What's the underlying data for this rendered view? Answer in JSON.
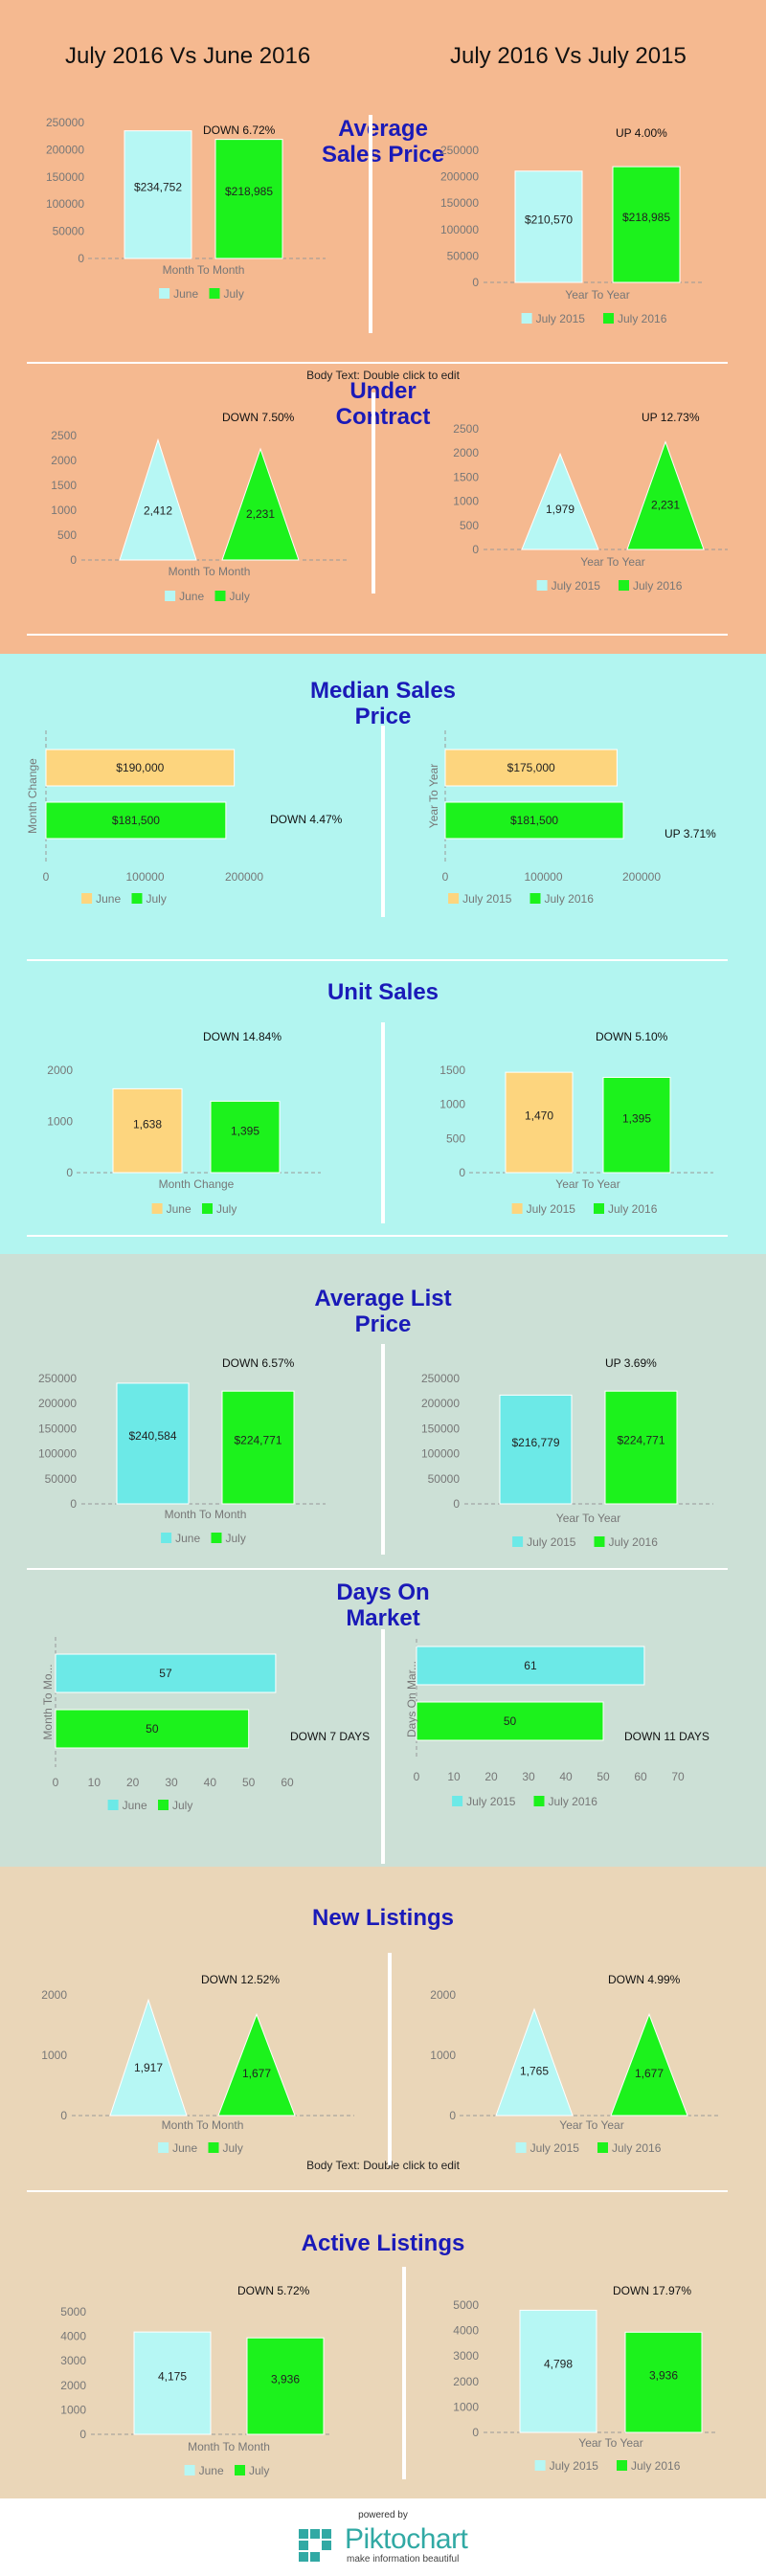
{
  "header": {
    "left": "July 2016 Vs June 2016",
    "right": "July 2016 Vs July 2015"
  },
  "sections": {
    "avg_sales": "Average\nSales Price",
    "under_contract": "Under\nContract",
    "median_sales": "Median Sales\nPrice",
    "unit_sales": "Unit Sales",
    "avg_list": "Average List\nPrice",
    "days_on_market": "Days On\nMarket",
    "new_listings": "New Listings",
    "active_listings": "Active Listings"
  },
  "notes": {
    "body_text_1": "Body Text: Double click to edit",
    "body_text_2": "Body Text: Double click to edit"
  },
  "colors": {
    "peach": "#f5b990",
    "cyan_bg": "#b2f5f0",
    "sage": "#cce0d6",
    "tan": "#ead6b8",
    "light_cyan": "#b6f7f4",
    "green": "#1cf21c",
    "orange": "#fdd57e",
    "teal": "#6ce9e7",
    "title_blue": "#1a1ab8"
  },
  "footer": {
    "powered_by": "powered by",
    "brand": "Piktochart",
    "tagline": "make information beautiful"
  },
  "chart_data": [
    {
      "id": "asp_mtm",
      "type": "bar",
      "categories": [
        "June",
        "July"
      ],
      "values": [
        234752,
        218985
      ],
      "labels": [
        "$234,752",
        "$218,985"
      ],
      "legend": [
        "June",
        "July"
      ],
      "xlabel": "Month To Month",
      "ylim": [
        0,
        250000
      ],
      "ticks": [
        0,
        50000,
        100000,
        150000,
        200000,
        250000
      ],
      "change": "DOWN 6.72%"
    },
    {
      "id": "asp_yty",
      "type": "bar",
      "categories": [
        "July 2015",
        "July 2016"
      ],
      "values": [
        210570,
        218985
      ],
      "labels": [
        "$210,570",
        "$218,985"
      ],
      "legend": [
        "July 2015",
        "July 2016"
      ],
      "xlabel": "Year To Year",
      "ylim": [
        0,
        250000
      ],
      "ticks": [
        0,
        50000,
        100000,
        150000,
        200000,
        250000
      ],
      "change": "UP 4.00%"
    },
    {
      "id": "uc_mtm",
      "type": "bar",
      "categories": [
        "June",
        "July"
      ],
      "values": [
        2412,
        2231
      ],
      "labels": [
        "2,412",
        "2,231"
      ],
      "legend": [
        "June",
        "July"
      ],
      "xlabel": "Month To Month",
      "ylim": [
        0,
        2500
      ],
      "ticks": [
        0,
        500,
        1000,
        1500,
        2000,
        2500
      ],
      "change": "DOWN 7.50%"
    },
    {
      "id": "uc_yty",
      "type": "bar",
      "categories": [
        "July 2015",
        "July 2016"
      ],
      "values": [
        1979,
        2231
      ],
      "labels": [
        "1,979",
        "2,231"
      ],
      "legend": [
        "July 2015",
        "July 2016"
      ],
      "xlabel": "Year To Year",
      "ylim": [
        0,
        2500
      ],
      "ticks": [
        0,
        500,
        1000,
        1500,
        2000,
        2500
      ],
      "change": "UP 12.73%"
    },
    {
      "id": "msp_mtm",
      "type": "bar",
      "orientation": "horizontal",
      "categories": [
        "June",
        "July"
      ],
      "values": [
        190000,
        181500
      ],
      "labels": [
        "$190,000",
        "$181,500"
      ],
      "legend": [
        "June",
        "July"
      ],
      "ylabel": "Month Change",
      "xlim": [
        0,
        200000
      ],
      "ticks": [
        0,
        100000,
        200000
      ],
      "change": "DOWN 4.47%"
    },
    {
      "id": "msp_yty",
      "type": "bar",
      "orientation": "horizontal",
      "categories": [
        "July 2015",
        "July 2016"
      ],
      "values": [
        175000,
        181500
      ],
      "labels": [
        "$175,000",
        "$181,500"
      ],
      "legend": [
        "July 2015",
        "July 2016"
      ],
      "ylabel": "Year To Year",
      "xlim": [
        0,
        200000
      ],
      "ticks": [
        0,
        100000,
        200000
      ],
      "change": "UP 3.71%"
    },
    {
      "id": "us_mtm",
      "type": "bar",
      "categories": [
        "June",
        "July"
      ],
      "values": [
        1638,
        1395
      ],
      "labels": [
        "1,638",
        "1,395"
      ],
      "legend": [
        "June",
        "July"
      ],
      "xlabel": "Month Change",
      "ylim": [
        0,
        2000
      ],
      "ticks": [
        0,
        1000,
        2000
      ],
      "change": "DOWN 14.84%"
    },
    {
      "id": "us_yty",
      "type": "bar",
      "categories": [
        "July 2015",
        "July 2016"
      ],
      "values": [
        1470,
        1395
      ],
      "labels": [
        "1,470",
        "1,395"
      ],
      "legend": [
        "July 2015",
        "July 2016"
      ],
      "xlabel": "Year To Year",
      "ylim": [
        0,
        1500
      ],
      "ticks": [
        0,
        500,
        1000,
        1500
      ],
      "change": "DOWN 5.10%"
    },
    {
      "id": "alp_mtm",
      "type": "bar",
      "categories": [
        "June",
        "July"
      ],
      "values": [
        240584,
        224771
      ],
      "labels": [
        "$240,584",
        "$224,771"
      ],
      "legend": [
        "June",
        "July"
      ],
      "xlabel": "Month To Month",
      "ylim": [
        0,
        250000
      ],
      "ticks": [
        0,
        50000,
        100000,
        150000,
        200000,
        250000
      ],
      "change": "DOWN 6.57%"
    },
    {
      "id": "alp_yty",
      "type": "bar",
      "categories": [
        "July 2015",
        "July 2016"
      ],
      "values": [
        216779,
        224771
      ],
      "labels": [
        "$216,779",
        "$224,771"
      ],
      "legend": [
        "July 2015",
        "July 2016"
      ],
      "xlabel": "Year To Year",
      "ylim": [
        0,
        250000
      ],
      "ticks": [
        0,
        50000,
        100000,
        150000,
        200000,
        250000
      ],
      "change": "UP 3.69%"
    },
    {
      "id": "dom_mtm",
      "type": "bar",
      "orientation": "horizontal",
      "categories": [
        "June",
        "July"
      ],
      "values": [
        57,
        50
      ],
      "labels": [
        "57",
        "50"
      ],
      "legend": [
        "June",
        "July"
      ],
      "ylabel": "Month To Mo...",
      "xlim": [
        0,
        60
      ],
      "ticks": [
        0,
        10,
        20,
        30,
        40,
        50,
        60
      ],
      "change": "DOWN 7 DAYS"
    },
    {
      "id": "dom_yty",
      "type": "bar",
      "orientation": "horizontal",
      "categories": [
        "July 2015",
        "July 2016"
      ],
      "values": [
        61,
        50
      ],
      "labels": [
        "61",
        "50"
      ],
      "legend": [
        "July 2015",
        "July 2016"
      ],
      "ylabel": "Days On Mar...",
      "xlim": [
        0,
        70
      ],
      "ticks": [
        0,
        10,
        20,
        30,
        40,
        50,
        60,
        70
      ],
      "change": "DOWN 11 DAYS"
    },
    {
      "id": "nl_mtm",
      "type": "bar",
      "categories": [
        "June",
        "July"
      ],
      "values": [
        1917,
        1677
      ],
      "labels": [
        "1,917",
        "1,677"
      ],
      "legend": [
        "June",
        "July"
      ],
      "xlabel": "Month To Month",
      "ylim": [
        0,
        2000
      ],
      "ticks": [
        0,
        1000,
        2000
      ],
      "change": "DOWN 12.52%"
    },
    {
      "id": "nl_yty",
      "type": "bar",
      "categories": [
        "July 2015",
        "July 2016"
      ],
      "values": [
        1765,
        1677
      ],
      "labels": [
        "1,765",
        "1,677"
      ],
      "legend": [
        "July 2015",
        "July 2016"
      ],
      "xlabel": "Year To Year",
      "ylim": [
        0,
        2000
      ],
      "ticks": [
        0,
        1000,
        2000
      ],
      "change": "DOWN 4.99%"
    },
    {
      "id": "al_mtm",
      "type": "bar",
      "categories": [
        "June",
        "July"
      ],
      "values": [
        4175,
        3936
      ],
      "labels": [
        "4,175",
        "3,936"
      ],
      "legend": [
        "June",
        "July"
      ],
      "xlabel": "Month To Month",
      "ylim": [
        0,
        5000
      ],
      "ticks": [
        0,
        1000,
        2000,
        3000,
        4000,
        5000
      ],
      "change": "DOWN 5.72%"
    },
    {
      "id": "al_yty",
      "type": "bar",
      "categories": [
        "July 2015",
        "July 2016"
      ],
      "values": [
        4798,
        3936
      ],
      "labels": [
        "4,798",
        "3,936"
      ],
      "legend": [
        "July 2015",
        "July 2016"
      ],
      "xlabel": "Year To Year",
      "ylim": [
        0,
        5000
      ],
      "ticks": [
        0,
        1000,
        2000,
        3000,
        4000,
        5000
      ],
      "change": "DOWN 17.97%"
    }
  ]
}
